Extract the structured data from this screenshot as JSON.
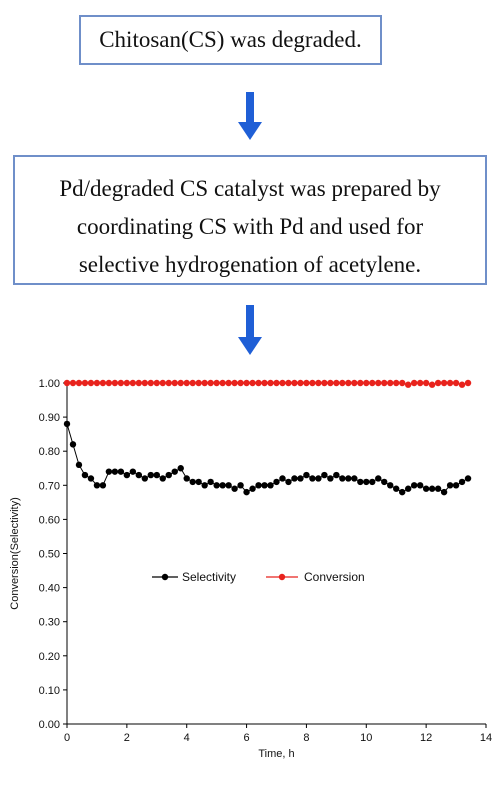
{
  "steps": [
    {
      "lines": [
        "Chitosan(CS)  was degraded."
      ]
    },
    {
      "lines": [
        "Pd/degraded CS catalyst was prepared by",
        "coordinating CS with Pd and used for",
        "selective hydrogenation of acetylene."
      ]
    }
  ],
  "arrow_color": "#1f5fd6",
  "box_border_color": "#6f8fc9",
  "chart_data": {
    "type": "scatter",
    "xlabel": "Time, h",
    "ylabel": "Conversion(Selectivity)",
    "xlim": [
      0,
      14
    ],
    "ylim": [
      0,
      1.0
    ],
    "x_ticks": [
      "0",
      "2",
      "4",
      "6",
      "8",
      "10",
      "12",
      "14"
    ],
    "y_ticks": [
      "0.00",
      "0.10",
      "0.20",
      "0.30",
      "0.40",
      "0.50",
      "0.60",
      "0.70",
      "0.80",
      "0.90",
      "1.00"
    ],
    "legend": {
      "placement": "center"
    },
    "series": [
      {
        "name": "Selectivity",
        "color": "#000000",
        "x": [
          0.0,
          0.2,
          0.4,
          0.6,
          0.8,
          1.0,
          1.2,
          1.4,
          1.6,
          1.8,
          2.0,
          2.2,
          2.4,
          2.6,
          2.8,
          3.0,
          3.2,
          3.4,
          3.6,
          3.8,
          4.0,
          4.2,
          4.4,
          4.6,
          4.8,
          5.0,
          5.2,
          5.4,
          5.6,
          5.8,
          6.0,
          6.2,
          6.4,
          6.6,
          6.8,
          7.0,
          7.2,
          7.4,
          7.6,
          7.8,
          8.0,
          8.2,
          8.4,
          8.6,
          8.8,
          9.0,
          9.2,
          9.4,
          9.6,
          9.8,
          10.0,
          10.2,
          10.4,
          10.6,
          10.8,
          11.0,
          11.2,
          11.4,
          11.6,
          11.8,
          12.0,
          12.2,
          12.4,
          12.6,
          12.8,
          13.0,
          13.2,
          13.4
        ],
        "y": [
          0.88,
          0.82,
          0.76,
          0.73,
          0.72,
          0.7,
          0.7,
          0.74,
          0.74,
          0.74,
          0.73,
          0.74,
          0.73,
          0.72,
          0.73,
          0.73,
          0.72,
          0.73,
          0.74,
          0.75,
          0.72,
          0.71,
          0.71,
          0.7,
          0.71,
          0.7,
          0.7,
          0.7,
          0.69,
          0.7,
          0.68,
          0.69,
          0.7,
          0.7,
          0.7,
          0.71,
          0.72,
          0.71,
          0.72,
          0.72,
          0.73,
          0.72,
          0.72,
          0.73,
          0.72,
          0.73,
          0.72,
          0.72,
          0.72,
          0.71,
          0.71,
          0.71,
          0.72,
          0.71,
          0.7,
          0.69,
          0.68,
          0.69,
          0.7,
          0.7,
          0.69,
          0.69,
          0.69,
          0.68,
          0.7,
          0.7,
          0.71,
          0.72
        ]
      },
      {
        "name": "Conversion",
        "color": "#e8231d",
        "x": [
          0.0,
          0.2,
          0.4,
          0.6,
          0.8,
          1.0,
          1.2,
          1.4,
          1.6,
          1.8,
          2.0,
          2.2,
          2.4,
          2.6,
          2.8,
          3.0,
          3.2,
          3.4,
          3.6,
          3.8,
          4.0,
          4.2,
          4.4,
          4.6,
          4.8,
          5.0,
          5.2,
          5.4,
          5.6,
          5.8,
          6.0,
          6.2,
          6.4,
          6.6,
          6.8,
          7.0,
          7.2,
          7.4,
          7.6,
          7.8,
          8.0,
          8.2,
          8.4,
          8.6,
          8.8,
          9.0,
          9.2,
          9.4,
          9.6,
          9.8,
          10.0,
          10.2,
          10.4,
          10.6,
          10.8,
          11.0,
          11.2,
          11.4,
          11.6,
          11.8,
          12.0,
          12.2,
          12.4,
          12.6,
          12.8,
          13.0,
          13.2,
          13.4
        ],
        "y": [
          1.0,
          1.0,
          1.0,
          1.0,
          1.0,
          1.0,
          1.0,
          1.0,
          1.0,
          1.0,
          1.0,
          1.0,
          1.0,
          1.0,
          1.0,
          1.0,
          1.0,
          1.0,
          1.0,
          1.0,
          1.0,
          1.0,
          1.0,
          1.0,
          1.0,
          1.0,
          1.0,
          1.0,
          1.0,
          1.0,
          1.0,
          1.0,
          1.0,
          1.0,
          1.0,
          1.0,
          1.0,
          1.0,
          1.0,
          1.0,
          1.0,
          1.0,
          1.0,
          1.0,
          1.0,
          1.0,
          1.0,
          1.0,
          1.0,
          1.0,
          1.0,
          1.0,
          1.0,
          1.0,
          1.0,
          1.0,
          1.0,
          0.995,
          1.0,
          1.0,
          1.0,
          0.995,
          1.0,
          1.0,
          1.0,
          1.0,
          0.995,
          1.0
        ]
      }
    ]
  }
}
